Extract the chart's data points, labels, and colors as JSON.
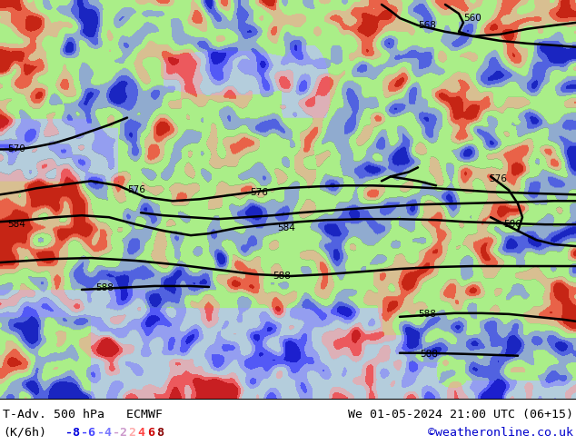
{
  "title_left": "T-Adv. 500 hPa   ECMWF",
  "title_right": "We 01-05-2024 21:00 UTC (06+15)",
  "units_label": "(K/6h)",
  "legend_values": [
    "-8",
    "-6",
    "-4",
    "-2",
    "2",
    "4",
    "6",
    "8"
  ],
  "legend_colors": [
    "#0000dd",
    "#4444ff",
    "#7777ff",
    "#cc99cc",
    "#ffaaaa",
    "#ff4444",
    "#cc0000",
    "#880000"
  ],
  "credit": "©weatheronline.co.uk",
  "background_color": "#ffffff",
  "land_color": "#aaee88",
  "sea_color": "#c8d8e8",
  "border_color": "#888888",
  "text_color": "#000000",
  "title_fontsize": 9.5,
  "legend_fontsize": 9.5,
  "credit_color": "#0000cc",
  "fig_width": 6.34,
  "fig_height": 4.9,
  "dpi": 100
}
